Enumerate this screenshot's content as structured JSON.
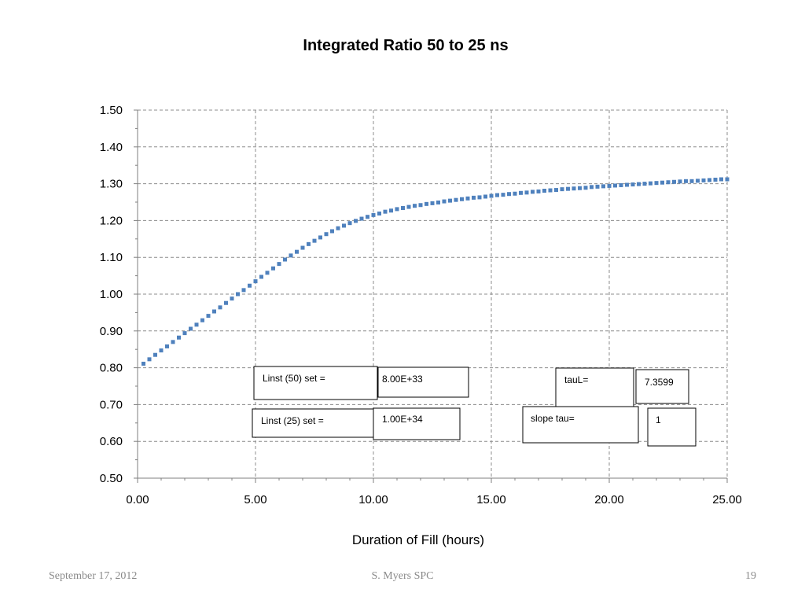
{
  "chart_data": {
    "type": "scatter",
    "title": "Integrated Ratio 50 to 25 ns",
    "xlabel": "Duration of Fill (hours)",
    "ylabel": "",
    "xlim": [
      0,
      25
    ],
    "ylim": [
      0.5,
      1.5
    ],
    "xticks": [
      "0.00",
      "5.00",
      "10.00",
      "15.00",
      "20.00",
      "25.00"
    ],
    "yticks": [
      "0.50",
      "0.60",
      "0.70",
      "0.80",
      "0.90",
      "1.00",
      "1.10",
      "1.20",
      "1.30",
      "1.40",
      "1.50"
    ],
    "grid": true,
    "legend": "none",
    "marker_color": "#4f81bd",
    "series": [
      {
        "x": [
          0.25,
          0.5,
          0.75,
          1.0,
          1.25,
          1.5,
          1.75,
          2.0,
          2.25,
          2.5,
          2.75,
          3.0,
          3.25,
          3.5,
          3.75,
          4.0,
          4.25,
          4.5,
          4.75,
          5.0,
          5.25,
          5.5,
          5.75,
          6.0,
          6.25,
          6.5,
          6.75,
          7.0,
          7.25,
          7.5,
          7.75,
          8.0,
          8.25,
          8.5,
          8.75,
          9.0,
          9.25,
          9.5,
          9.75,
          10.0,
          10.25,
          10.5,
          10.75,
          11.0,
          11.25,
          11.5,
          11.75,
          12.0,
          12.25,
          12.5,
          12.75,
          13.0,
          13.25,
          13.5,
          13.75,
          14.0,
          14.25,
          14.5,
          14.75,
          15.0,
          15.25,
          15.5,
          15.75,
          16.0,
          16.25,
          16.5,
          16.75,
          17.0,
          17.25,
          17.5,
          17.75,
          18.0,
          18.25,
          18.5,
          18.75,
          19.0,
          19.25,
          19.5,
          19.75,
          20.0,
          20.25,
          20.5,
          20.75,
          21.0,
          21.25,
          21.5,
          21.75,
          22.0,
          22.25,
          22.5,
          22.75,
          23.0,
          23.25,
          23.5,
          23.75,
          24.0,
          24.25,
          24.5,
          24.75,
          25.0
        ],
        "y": [
          0.811,
          0.823,
          0.835,
          0.847,
          0.858,
          0.87,
          0.882,
          0.894,
          0.906,
          0.917,
          0.929,
          0.941,
          0.953,
          0.964,
          0.976,
          0.988,
          1.0,
          1.011,
          1.023,
          1.035,
          1.047,
          1.058,
          1.07,
          1.082,
          1.094,
          1.105,
          1.115,
          1.126,
          1.136,
          1.145,
          1.154,
          1.163,
          1.171,
          1.179,
          1.186,
          1.193,
          1.199,
          1.205,
          1.21,
          1.215,
          1.219,
          1.224,
          1.227,
          1.231,
          1.234,
          1.237,
          1.24,
          1.242,
          1.245,
          1.247,
          1.249,
          1.252,
          1.254,
          1.256,
          1.258,
          1.26,
          1.262,
          1.263,
          1.265,
          1.267,
          1.269,
          1.27,
          1.272,
          1.273,
          1.275,
          1.276,
          1.278,
          1.279,
          1.281,
          1.282,
          1.283,
          1.285,
          1.286,
          1.287,
          1.288,
          1.289,
          1.291,
          1.292,
          1.293,
          1.294,
          1.295,
          1.296,
          1.297,
          1.298,
          1.299,
          1.3,
          1.301,
          1.302,
          1.303,
          1.304,
          1.305,
          1.306,
          1.307,
          1.307,
          1.308,
          1.309,
          1.31,
          1.311,
          1.312,
          1.312
        ]
      }
    ]
  },
  "boxes": {
    "linst50_label": "Linst (50) set =",
    "linst50_value": "8.00E+33",
    "linst25_label": "Linst (25) set =",
    "linst25_value": "1.00E+34",
    "taul_label": "tauL=",
    "taul_value": "7.3599",
    "slope_label": "slope tau=",
    "slope_value": "1"
  },
  "footer": {
    "date": "September 17, 2012",
    "author": "S. Myers SPC",
    "page": "19"
  }
}
